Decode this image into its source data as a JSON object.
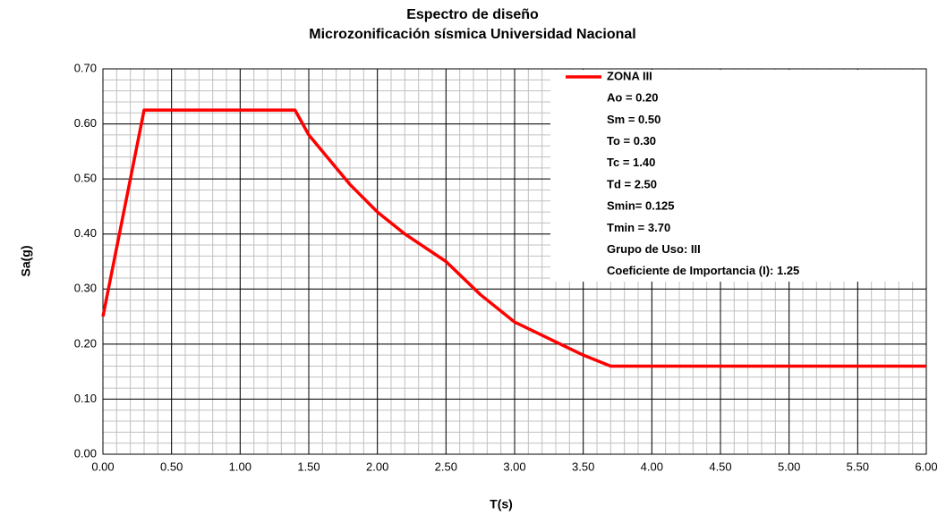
{
  "chart_data": {
    "type": "line",
    "title": "Espectro de diseño",
    "subtitle": "Microzonificación sísmica Universidad Nacional",
    "x_label": "T(s)",
    "y_label": "Sa(g)",
    "x": [
      0,
      0.3,
      1.4,
      1.5,
      1.6,
      1.8,
      2.0,
      2.2,
      2.5,
      2.75,
      3.0,
      3.25,
      3.5,
      3.7,
      6.0
    ],
    "series": [
      {
        "name": "ZONA III",
        "color": "#ff0000",
        "values": [
          0.25,
          0.625,
          0.625,
          0.58,
          0.55,
          0.49,
          0.44,
          0.4,
          0.35,
          0.29,
          0.24,
          0.21,
          0.18,
          0.16,
          0.16
        ]
      }
    ],
    "annotations": [
      "Ao = 0.20",
      "Sm = 0.50",
      "To = 0.30",
      "Tc = 1.40",
      "Td = 2.50",
      "Smin= 0.125",
      "Tmin = 3.70",
      "Grupo de Uso: III",
      "Coeficiente de Importancia (I): 1.25"
    ],
    "xlim": [
      0,
      6
    ],
    "ylim": [
      0,
      0.7
    ],
    "xticks": [
      {
        "value": 0,
        "label": "0.00"
      },
      {
        "value": 0.5,
        "label": "0.50"
      },
      {
        "value": 1,
        "label": "1.00"
      },
      {
        "value": 1.5,
        "label": "1.50"
      },
      {
        "value": 2,
        "label": "2.00"
      },
      {
        "value": 2.5,
        "label": "2.50"
      },
      {
        "value": 3,
        "label": "3.00"
      },
      {
        "value": 3.5,
        "label": "3.50"
      },
      {
        "value": 4,
        "label": "4.00"
      },
      {
        "value": 4.5,
        "label": "4.50"
      },
      {
        "value": 5,
        "label": "5.00"
      },
      {
        "value": 5.5,
        "label": "5.50"
      },
      {
        "value": 6,
        "label": "6.00"
      }
    ],
    "yticks": [
      {
        "value": 0,
        "label": "0.00"
      },
      {
        "value": 0.1,
        "label": "0.10"
      },
      {
        "value": 0.2,
        "label": "0.20"
      },
      {
        "value": 0.3,
        "label": "0.30"
      },
      {
        "value": 0.4,
        "label": "0.40"
      },
      {
        "value": 0.5,
        "label": "0.50"
      },
      {
        "value": 0.6,
        "label": "0.60"
      },
      {
        "value": 0.7,
        "label": "0.70"
      }
    ],
    "minor_grid": {
      "x": 0.1,
      "y": 0.02
    },
    "grid": true,
    "legend": "upper right"
  }
}
